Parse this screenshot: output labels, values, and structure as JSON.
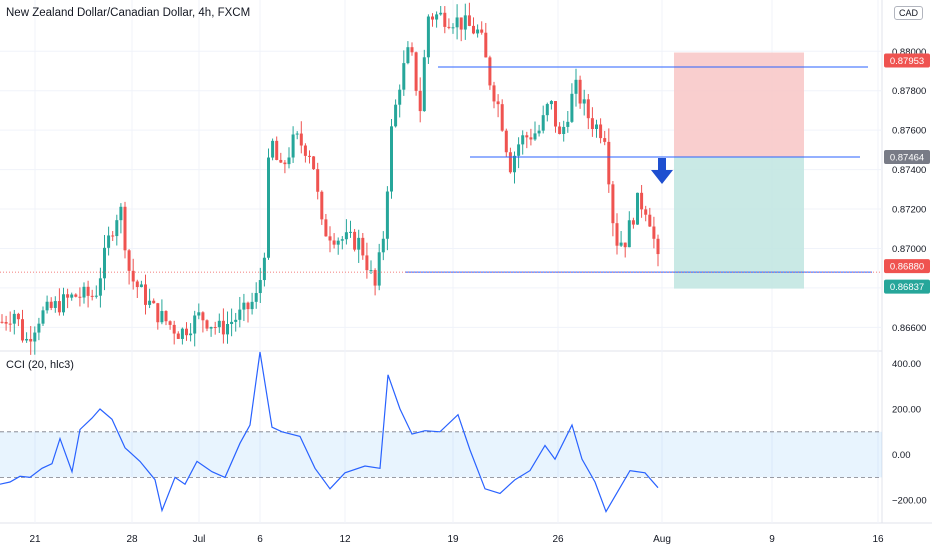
{
  "header": {
    "title": "New Zealand Dollar/Canadian Dollar, 4h, FXCM",
    "currency_badge": "CAD"
  },
  "cci": {
    "label": "CCI (20, hlc3)",
    "axis_ticks": [
      400,
      200,
      0,
      -200
    ],
    "axis_labels": [
      "400.00",
      "200.00",
      "0.00",
      "−200.00"
    ],
    "band": [
      100,
      -100
    ],
    "color": "#2962ff"
  },
  "colors": {
    "up": "#26a69a",
    "down": "#ef5350",
    "line": "#2962ff",
    "stop_zone": "#f8c6c6",
    "target_zone": "#bfe5e0",
    "arrow": "#1e4fd0"
  },
  "chart_data": [
    {
      "type": "candlestick",
      "title": "New Zealand Dollar/Canadian Dollar, 4h, FXCM",
      "ylim": [
        0.8648,
        0.8826
      ],
      "y_ticks": [
        0.866,
        0.868,
        0.87,
        0.872,
        0.874,
        0.876,
        0.878,
        0.88
      ],
      "y_tick_labels": [
        "0.86600",
        "0.86800",
        "0.87000",
        "0.87200",
        "0.87400",
        "0.87600",
        "0.87800",
        "0.88000"
      ],
      "x_tick_labels": [
        "21",
        "28",
        "Jul",
        "6",
        "12",
        "19",
        "26",
        "Aug",
        "9",
        "16"
      ],
      "price_labels": [
        {
          "text": "0.87953",
          "value": 0.87953,
          "color": "#ef5350"
        },
        {
          "text": "0.87464",
          "value": 0.87464,
          "color": "#787b86"
        },
        {
          "text": "0.86880",
          "value": 0.8688,
          "color": "#ef5350"
        },
        {
          "text": "0.86837",
          "value": 0.86837,
          "color": "#26a69a"
        }
      ],
      "horizontal_lines": [
        0.8792,
        0.87464,
        0.8688
      ],
      "position_tool": {
        "entry": 0.87464,
        "stop": 0.87953,
        "target": 0.86837
      },
      "anchors": [
        [
          0,
          0.8662
        ],
        [
          15,
          0.8668
        ],
        [
          25,
          0.8652
        ],
        [
          40,
          0.8666
        ],
        [
          60,
          0.8672
        ],
        [
          75,
          0.8676
        ],
        [
          95,
          0.8676
        ],
        [
          110,
          0.8707
        ],
        [
          120,
          0.8722
        ],
        [
          130,
          0.8686
        ],
        [
          155,
          0.8668
        ],
        [
          180,
          0.8657
        ],
        [
          200,
          0.8666
        ],
        [
          220,
          0.8659
        ],
        [
          245,
          0.8668
        ],
        [
          258,
          0.8676
        ],
        [
          265,
          0.8702
        ],
        [
          270,
          0.8758
        ],
        [
          280,
          0.8738
        ],
        [
          295,
          0.8756
        ],
        [
          312,
          0.8748
        ],
        [
          322,
          0.871
        ],
        [
          340,
          0.8705
        ],
        [
          360,
          0.8703
        ],
        [
          375,
          0.868
        ],
        [
          385,
          0.8712
        ],
        [
          390,
          0.8755
        ],
        [
          400,
          0.8785
        ],
        [
          410,
          0.8802
        ],
        [
          420,
          0.877
        ],
        [
          428,
          0.8818
        ],
        [
          440,
          0.8818
        ],
        [
          455,
          0.8816
        ],
        [
          470,
          0.8812
        ],
        [
          480,
          0.8809
        ],
        [
          490,
          0.8785
        ],
        [
          500,
          0.877
        ],
        [
          510,
          0.8742
        ],
        [
          520,
          0.8755
        ],
        [
          540,
          0.876
        ],
        [
          550,
          0.8775
        ],
        [
          560,
          0.8755
        ],
        [
          575,
          0.8782
        ],
        [
          590,
          0.8765
        ],
        [
          605,
          0.8758
        ],
        [
          615,
          0.8704
        ],
        [
          625,
          0.8704
        ],
        [
          638,
          0.8724
        ],
        [
          648,
          0.872
        ],
        [
          657,
          0.8696
        ],
        [
          660,
          0.8686
        ]
      ]
    },
    {
      "type": "line",
      "title": "CCI (20, hlc3)",
      "ylim": [
        -300,
        450
      ],
      "series": [
        {
          "values": [
            [
              0,
              -130
            ],
            [
              10,
              -120
            ],
            [
              20,
              -95
            ],
            [
              30,
              -100
            ],
            [
              42,
              -60
            ],
            [
              52,
              -40
            ],
            [
              60,
              70
            ],
            [
              72,
              -75
            ],
            [
              80,
              110
            ],
            [
              92,
              160
            ],
            [
              100,
              200
            ],
            [
              112,
              155
            ],
            [
              125,
              30
            ],
            [
              140,
              -30
            ],
            [
              155,
              -110
            ],
            [
              162,
              -245
            ],
            [
              175,
              -100
            ],
            [
              185,
              -130
            ],
            [
              197,
              -30
            ],
            [
              212,
              -75
            ],
            [
              225,
              -100
            ],
            [
              240,
              50
            ],
            [
              250,
              130
            ],
            [
              260,
              450
            ],
            [
              272,
              120
            ],
            [
              282,
              100
            ],
            [
              300,
              80
            ],
            [
              315,
              -60
            ],
            [
              330,
              -150
            ],
            [
              345,
              -80
            ],
            [
              365,
              -50
            ],
            [
              380,
              -60
            ],
            [
              388,
              350
            ],
            [
              400,
              200
            ],
            [
              412,
              90
            ],
            [
              425,
              105
            ],
            [
              440,
              100
            ],
            [
              458,
              175
            ],
            [
              470,
              20
            ],
            [
              485,
              -150
            ],
            [
              500,
              -170
            ],
            [
              515,
              -110
            ],
            [
              530,
              -70
            ],
            [
              545,
              40
            ],
            [
              555,
              -20
            ],
            [
              572,
              130
            ],
            [
              582,
              -20
            ],
            [
              595,
              -120
            ],
            [
              606,
              -250
            ],
            [
              618,
              -160
            ],
            [
              630,
              -70
            ],
            [
              645,
              -80
            ],
            [
              658,
              -145
            ]
          ]
        }
      ]
    }
  ]
}
